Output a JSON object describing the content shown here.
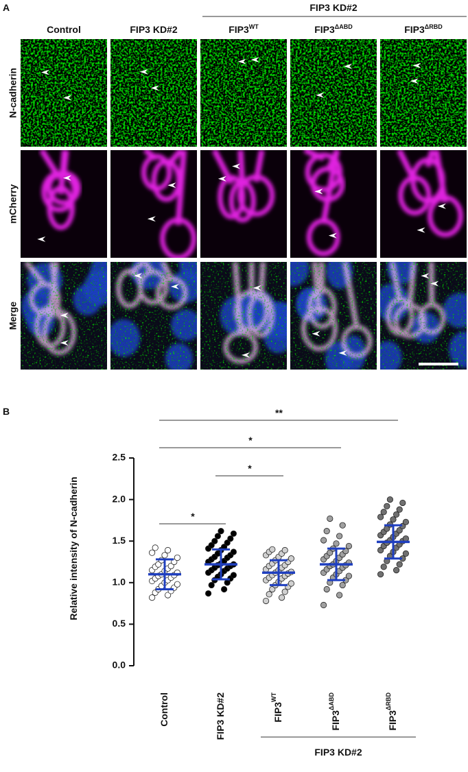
{
  "panel_a": {
    "label": "A",
    "group_label": "FIP3 KD#2",
    "columns": [
      {
        "text": "Control"
      },
      {
        "text": "FIP3 KD#2"
      },
      {
        "text": "FIP3",
        "sup": "WT"
      },
      {
        "text": "FIP3",
        "sup": "ΔABD"
      },
      {
        "text": "FIP3",
        "sup": "ΔRBD"
      }
    ],
    "rows": [
      "N-cadherin",
      "mCherry",
      "Merge"
    ]
  },
  "chart_data": {
    "type": "dotplot",
    "panel_label": "B",
    "ylabel": "Relative intensity of N-cadherin",
    "categories": [
      {
        "text": "Control"
      },
      {
        "text": "FIP3 KD#2"
      },
      {
        "text": "FIP3",
        "sup": "WT"
      },
      {
        "text": "FIP3",
        "sup": "ΔABD"
      },
      {
        "text": "FIP3",
        "sup": "ΔRBD"
      }
    ],
    "group_label": "FIP3 KD#2",
    "point_colors": [
      "#ffffff",
      "#000000",
      "#d0d0d0",
      "#a0a0a0",
      "#707070"
    ],
    "summary_color": "#1f3fbf",
    "means": [
      1.1,
      1.22,
      1.12,
      1.22,
      1.49
    ],
    "sd": [
      0.18,
      0.18,
      0.15,
      0.19,
      0.2
    ],
    "points": [
      [
        0.82,
        0.85,
        0.88,
        0.9,
        0.92,
        0.94,
        0.96,
        0.98,
        1.0,
        1.02,
        1.03,
        1.05,
        1.06,
        1.08,
        1.09,
        1.1,
        1.12,
        1.14,
        1.15,
        1.17,
        1.19,
        1.2,
        1.22,
        1.25,
        1.27,
        1.3,
        1.33,
        1.36,
        1.39,
        1.42
      ],
      [
        0.87,
        0.92,
        0.97,
        1.0,
        1.03,
        1.05,
        1.07,
        1.09,
        1.1,
        1.12,
        1.14,
        1.15,
        1.17,
        1.18,
        1.2,
        1.21,
        1.22,
        1.23,
        1.25,
        1.26,
        1.28,
        1.3,
        1.31,
        1.33,
        1.35,
        1.37,
        1.39,
        1.41,
        1.43,
        1.45,
        1.48,
        1.5,
        1.53,
        1.56,
        1.59,
        1.62
      ],
      [
        0.78,
        0.82,
        0.86,
        0.89,
        0.92,
        0.95,
        0.97,
        0.99,
        1.01,
        1.03,
        1.05,
        1.06,
        1.08,
        1.09,
        1.11,
        1.12,
        1.13,
        1.15,
        1.16,
        1.18,
        1.2,
        1.21,
        1.23,
        1.25,
        1.27,
        1.29,
        1.31,
        1.33,
        1.35,
        1.37,
        1.39,
        1.4
      ],
      [
        0.73,
        0.85,
        0.92,
        0.97,
        1.0,
        1.03,
        1.06,
        1.08,
        1.1,
        1.12,
        1.14,
        1.16,
        1.18,
        1.2,
        1.21,
        1.22,
        1.24,
        1.26,
        1.28,
        1.3,
        1.32,
        1.34,
        1.36,
        1.38,
        1.41,
        1.44,
        1.47,
        1.51,
        1.56,
        1.62,
        1.69,
        1.77
      ],
      [
        1.1,
        1.15,
        1.19,
        1.22,
        1.26,
        1.29,
        1.32,
        1.35,
        1.37,
        1.39,
        1.42,
        1.44,
        1.46,
        1.48,
        1.5,
        1.51,
        1.53,
        1.55,
        1.57,
        1.59,
        1.61,
        1.63,
        1.65,
        1.68,
        1.7,
        1.73,
        1.76,
        1.79,
        1.82,
        1.85,
        1.88,
        1.92,
        1.96,
        2.0
      ]
    ],
    "significance": [
      {
        "from": 0,
        "to": 4,
        "label": "**"
      },
      {
        "from": 0,
        "to": 3,
        "label": "*"
      },
      {
        "from": 1,
        "to": 2,
        "label": "*"
      },
      {
        "from": 0,
        "to": 1,
        "label": "*"
      }
    ],
    "ylim": [
      0,
      2.5
    ],
    "yticks": [
      {
        "value": 0,
        "label": "0.0"
      },
      0.5,
      {
        "value": 1,
        "label": "1.0"
      },
      1.5,
      {
        "value": 2,
        "label": "2.0"
      },
      2.5
    ]
  }
}
